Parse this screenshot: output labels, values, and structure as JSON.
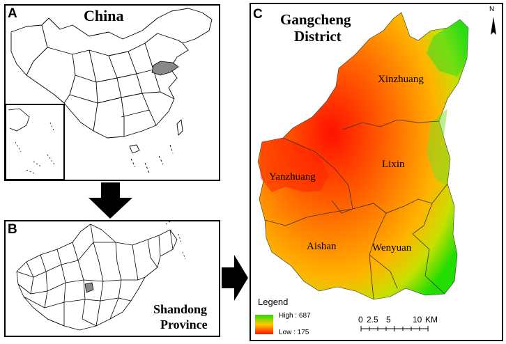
{
  "panel_a": {
    "letter": "A",
    "title": "China"
  },
  "panel_b": {
    "letter": "B",
    "title_line1": "Shandong",
    "title_line2": "Province"
  },
  "panel_c": {
    "letter": "C",
    "title_line1": "Gangcheng",
    "title_line2": "District",
    "north": "N",
    "regions": [
      "Xinzhuang",
      "Lixin",
      "Yanzhuang",
      "Aishan",
      "Wenyuan"
    ],
    "legend": {
      "title": "Legend",
      "high": "High : 687",
      "low": "Low : 175"
    },
    "scalebar": {
      "labels": [
        "0",
        "2.5",
        "5",
        "10"
      ],
      "unit": "KM"
    }
  },
  "colors": {
    "high": "#22dd00",
    "mid": "#ff9900",
    "low": "#ff1100",
    "highlight": "#888888"
  }
}
